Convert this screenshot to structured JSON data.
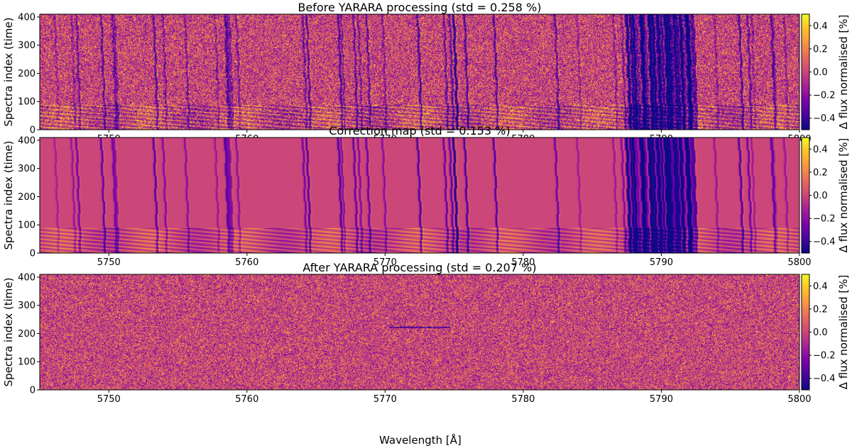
{
  "figure": {
    "xlabel": "Wavelength [Å]"
  },
  "chart_data": [
    {
      "type": "heatmap",
      "title": "Before YARARA processing (std = 0.258 %)",
      "xlabel": "",
      "ylabel": "Spectra  index (time)",
      "xlim": [
        5745,
        5800
      ],
      "ylim": [
        0,
        410
      ],
      "x_ticks": [
        5750,
        5760,
        5770,
        5780,
        5790,
        5800
      ],
      "y_ticks": [
        0,
        100,
        200,
        300,
        400
      ],
      "colorbar": {
        "label": "Δ flux normalised [%]",
        "range": [
          -0.5,
          0.5
        ],
        "ticks": [
          0.4,
          0.2,
          0.0,
          -0.2,
          -0.4
        ],
        "tick_labels": [
          "0.4",
          "0.2",
          "0.0",
          "−0.2",
          "−0.4"
        ],
        "colormap": "plasma"
      },
      "std_percent": 0.258
    },
    {
      "type": "heatmap",
      "title": "Correction map (std = 0.153 %)",
      "xlabel": "",
      "ylabel": "Spectra  index (time)",
      "xlim": [
        5745,
        5800
      ],
      "ylim": [
        0,
        410
      ],
      "x_ticks": [
        5750,
        5760,
        5770,
        5780,
        5790,
        5800
      ],
      "y_ticks": [
        0,
        100,
        200,
        300,
        400
      ],
      "colorbar": {
        "label": "Δ flux normalised [%]",
        "range": [
          -0.5,
          0.5
        ],
        "ticks": [
          0.4,
          0.2,
          0.0,
          -0.2,
          -0.4
        ],
        "tick_labels": [
          "0.4",
          "0.2",
          "0.0",
          "−0.2",
          "−0.4"
        ],
        "colormap": "plasma"
      },
      "std_percent": 0.153
    },
    {
      "type": "heatmap",
      "title": "After YARARA processing (std = 0.207 %)",
      "xlabel": "Wavelength [Å]",
      "ylabel": "Spectra  index (time)",
      "xlim": [
        5745,
        5800
      ],
      "ylim": [
        0,
        410
      ],
      "x_ticks": [
        5750,
        5760,
        5770,
        5780,
        5790,
        5800
      ],
      "y_ticks": [
        0,
        100,
        200,
        300,
        400
      ],
      "colorbar": {
        "label": "Δ flux normalised [%]",
        "range": [
          -0.5,
          0.5
        ],
        "ticks": [
          0.4,
          0.2,
          0.0,
          -0.2,
          -0.4
        ],
        "tick_labels": [
          "0.4",
          "0.2",
          "0.0",
          "−0.2",
          "−0.4"
        ],
        "colormap": "plasma"
      },
      "std_percent": 0.207
    }
  ]
}
